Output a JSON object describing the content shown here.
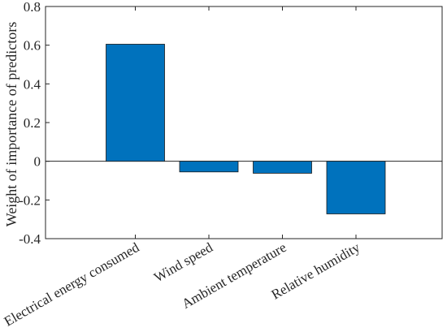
{
  "chart_data": {
    "type": "bar",
    "categories": [
      "Electrical energy consumed",
      "Wind speed",
      "Ambient temperature",
      "Relative humidity"
    ],
    "values": [
      0.605,
      -0.055,
      -0.062,
      -0.272
    ],
    "title": "",
    "xlabel": "",
    "ylabel": "Weight of importance of predictors",
    "ylim": [
      -0.4,
      0.8
    ],
    "yticks": [
      -0.4,
      -0.2,
      0,
      0.2,
      0.4,
      0.6,
      0.8
    ],
    "ytick_labels": [
      "-0.4",
      "-0.2",
      "0",
      "0.2",
      "0.4",
      "0.6",
      "0.8"
    ],
    "bar_color": "#0072BD",
    "grid": false,
    "zero_line": true
  }
}
